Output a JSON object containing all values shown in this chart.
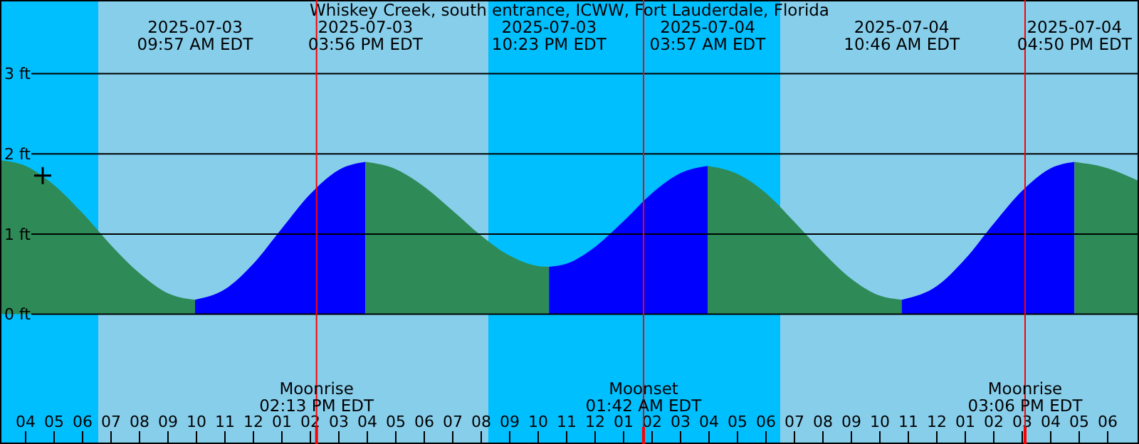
{
  "chart_data": {
    "type": "area",
    "title": "Whiskey Creek, south entrance, ICWW, Fort Lauderdale, Florida",
    "xlim": [
      "2025-07-03T03:06",
      "2025-07-04T19:06"
    ],
    "ylim": [
      -1.62,
      3.92
    ],
    "xticks": [
      {
        "value": "2025-07-03T04:00",
        "label": "04"
      },
      {
        "value": "2025-07-03T05:00",
        "label": "05"
      },
      {
        "value": "2025-07-03T06:00",
        "label": "06"
      },
      {
        "value": "2025-07-03T07:00",
        "label": "07"
      },
      {
        "value": "2025-07-03T08:00",
        "label": "08"
      },
      {
        "value": "2025-07-03T09:00",
        "label": "09"
      },
      {
        "value": "2025-07-03T10:00",
        "label": "10"
      },
      {
        "value": "2025-07-03T11:00",
        "label": "11"
      },
      {
        "value": "2025-07-03T12:00",
        "label": "12"
      },
      {
        "value": "2025-07-03T13:00",
        "label": "01"
      },
      {
        "value": "2025-07-03T14:00",
        "label": "02"
      },
      {
        "value": "2025-07-03T15:00",
        "label": "03"
      },
      {
        "value": "2025-07-03T16:00",
        "label": "04"
      },
      {
        "value": "2025-07-03T17:00",
        "label": "05"
      },
      {
        "value": "2025-07-03T18:00",
        "label": "06"
      },
      {
        "value": "2025-07-03T19:00",
        "label": "07"
      },
      {
        "value": "2025-07-03T20:00",
        "label": "08"
      },
      {
        "value": "2025-07-03T21:00",
        "label": "09"
      },
      {
        "value": "2025-07-03T22:00",
        "label": "10"
      },
      {
        "value": "2025-07-03T23:00",
        "label": "11"
      },
      {
        "value": "2025-07-04T00:00",
        "label": "12"
      },
      {
        "value": "2025-07-04T01:00",
        "label": "01"
      },
      {
        "value": "2025-07-04T02:00",
        "label": "02"
      },
      {
        "value": "2025-07-04T03:00",
        "label": "03"
      },
      {
        "value": "2025-07-04T04:00",
        "label": "04"
      },
      {
        "value": "2025-07-04T05:00",
        "label": "05"
      },
      {
        "value": "2025-07-04T06:00",
        "label": "06"
      },
      {
        "value": "2025-07-04T07:00",
        "label": "07"
      },
      {
        "value": "2025-07-04T08:00",
        "label": "08"
      },
      {
        "value": "2025-07-04T09:00",
        "label": "09"
      },
      {
        "value": "2025-07-04T10:00",
        "label": "10"
      },
      {
        "value": "2025-07-04T11:00",
        "label": "11"
      },
      {
        "value": "2025-07-04T12:00",
        "label": "12"
      },
      {
        "value": "2025-07-04T13:00",
        "label": "01"
      },
      {
        "value": "2025-07-04T14:00",
        "label": "02"
      },
      {
        "value": "2025-07-04T15:00",
        "label": "03"
      },
      {
        "value": "2025-07-04T16:00",
        "label": "04"
      },
      {
        "value": "2025-07-04T17:00",
        "label": "05"
      },
      {
        "value": "2025-07-04T18:00",
        "label": "06"
      }
    ],
    "yticks": [
      {
        "value": 0,
        "label": "0 ft"
      },
      {
        "value": 1,
        "label": "1 ft"
      },
      {
        "value": 2,
        "label": "2 ft"
      },
      {
        "value": 3,
        "label": "3 ft"
      }
    ],
    "grid": "y",
    "bands": [
      {
        "axis": "x",
        "from": "2025-07-03T03:06",
        "to": "2025-07-03T06:33",
        "color": "#00bfff"
      },
      {
        "axis": "x",
        "from": "2025-07-03T06:33",
        "to": "2025-07-03T20:15",
        "color": "#87ceeb"
      },
      {
        "axis": "x",
        "from": "2025-07-03T20:15",
        "to": "2025-07-04T06:30",
        "color": "#00bfff"
      },
      {
        "axis": "x",
        "from": "2025-07-04T06:30",
        "to": "2025-07-04T19:06",
        "color": "#87ceeb"
      }
    ],
    "ref_lines": [
      {
        "axis": "x",
        "value": "2025-07-03T14:13",
        "label": "Moonrise\n02:13 PM EDT",
        "color": "#ff0000"
      },
      {
        "axis": "x",
        "value": "2025-07-04T01:42",
        "label": "Moonset\n01:42 AM EDT",
        "color": "#ff0000"
      },
      {
        "axis": "x",
        "value": "2025-07-04T15:06",
        "label": "Moonrise\n03:06 PM EDT",
        "color": "#ff0000"
      }
    ],
    "series": [
      {
        "color": "#2e8b57",
        "x": [
          "2025-07-03T03:06",
          "2025-07-03T04:00",
          "2025-07-03T05:00",
          "2025-07-03T06:00",
          "2025-07-03T07:00",
          "2025-07-03T08:00",
          "2025-07-03T09:00",
          "2025-07-03T09:57"
        ],
        "values": [
          1.92,
          1.85,
          1.61,
          1.26,
          0.86,
          0.51,
          0.26,
          0.18
        ]
      },
      {
        "color": "#0000ff",
        "x": [
          "2025-07-03T09:57",
          "2025-07-03T11:00",
          "2025-07-03T12:00",
          "2025-07-03T13:00",
          "2025-07-03T14:00",
          "2025-07-03T15:00",
          "2025-07-03T15:56"
        ],
        "values": [
          0.18,
          0.31,
          0.63,
          1.07,
          1.5,
          1.8,
          1.9
        ]
      },
      {
        "color": "#2e8b57",
        "x": [
          "2025-07-03T15:56",
          "2025-07-03T17:00",
          "2025-07-03T18:00",
          "2025-07-03T19:00",
          "2025-07-03T20:00",
          "2025-07-03T21:00",
          "2025-07-03T22:00",
          "2025-07-03T22:23"
        ],
        "values": [
          1.9,
          1.81,
          1.59,
          1.29,
          0.98,
          0.73,
          0.6,
          0.59
        ]
      },
      {
        "color": "#0000ff",
        "x": [
          "2025-07-03T22:23",
          "2025-07-03T23:00",
          "2025-07-04T00:00",
          "2025-07-04T01:00",
          "2025-07-04T02:00",
          "2025-07-04T03:00",
          "2025-07-04T03:57"
        ],
        "values": [
          0.59,
          0.63,
          0.84,
          1.16,
          1.51,
          1.76,
          1.85
        ]
      },
      {
        "color": "#2e8b57",
        "x": [
          "2025-07-04T03:57",
          "2025-07-04T05:00",
          "2025-07-04T06:00",
          "2025-07-04T07:00",
          "2025-07-04T08:00",
          "2025-07-04T09:00",
          "2025-07-04T10:00",
          "2025-07-04T10:46"
        ],
        "values": [
          1.85,
          1.75,
          1.51,
          1.15,
          0.77,
          0.44,
          0.23,
          0.18
        ]
      },
      {
        "color": "#0000ff",
        "x": [
          "2025-07-04T10:46",
          "2025-07-04T12:00",
          "2025-07-04T13:00",
          "2025-07-04T14:00",
          "2025-07-04T15:00",
          "2025-07-04T16:00",
          "2025-07-04T16:50"
        ],
        "values": [
          0.18,
          0.35,
          0.69,
          1.13,
          1.54,
          1.82,
          1.9
        ]
      },
      {
        "color": "#2e8b57",
        "x": [
          "2025-07-04T16:50",
          "2025-07-04T18:00",
          "2025-07-04T19:06"
        ],
        "values": [
          1.9,
          1.82,
          1.66
        ]
      },
      {
        "type": "scatter",
        "color": "#000000",
        "marker": "cross",
        "x": [
          "2025-07-03T04:36"
        ],
        "values": [
          1.73
        ]
      }
    ],
    "annotations": [
      "2025-07-03\n09:57 AM EDT",
      "2025-07-03\n03:56 PM EDT",
      "2025-07-03\n10:23 PM EDT",
      "2025-07-04\n03:57 AM EDT",
      "2025-07-04\n10:46 AM EDT",
      "2025-07-04\n04:50 PM EDT"
    ]
  }
}
